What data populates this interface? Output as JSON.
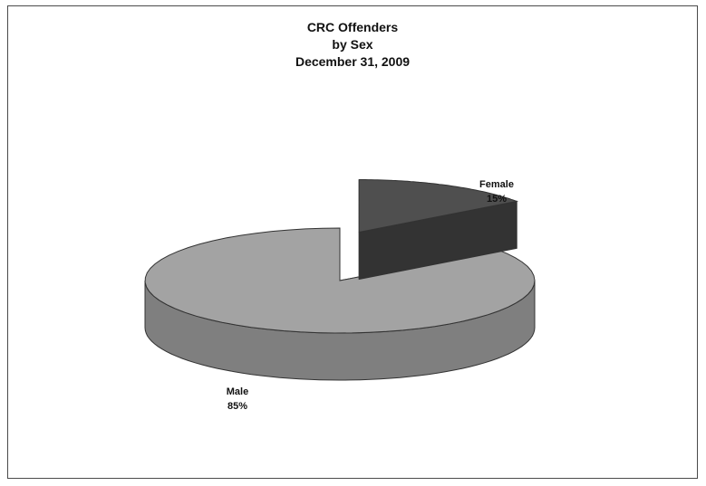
{
  "chart_data": {
    "type": "pie",
    "title_lines": [
      "CRC Offenders",
      "by Sex",
      "December 31, 2009"
    ],
    "slices": [
      {
        "name": "Female",
        "value": 15,
        "label_pct": "15%",
        "color": "#4f4f4f",
        "exploded": true
      },
      {
        "name": "Male",
        "value": 85,
        "label_pct": "85%",
        "color": "#a3a3a3",
        "exploded": false
      }
    ],
    "legend": "none",
    "style": "3d-exploded"
  }
}
